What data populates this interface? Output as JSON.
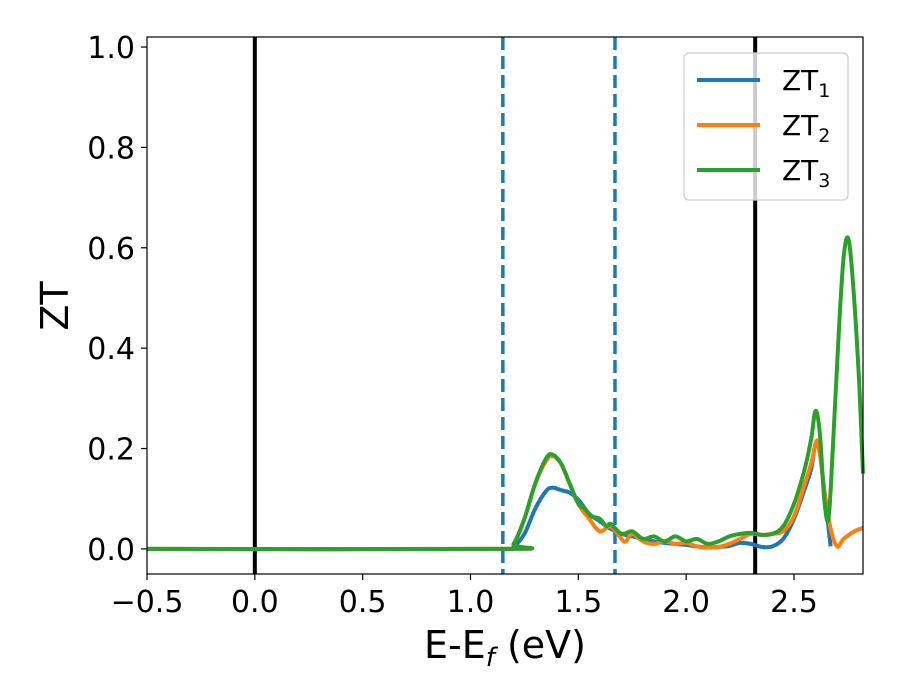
{
  "chart_data": {
    "type": "line",
    "xlabel": {
      "main": "E-E",
      "sub": "f",
      "rest": " (eV)"
    },
    "ylabel": "ZT",
    "xlim": [
      -0.5,
      2.82
    ],
    "ylim": [
      -0.05,
      1.02
    ],
    "x_ticks": [
      {
        "value": -0.5,
        "label": "−0.5"
      },
      {
        "value": 0.0,
        "label": "0.0"
      },
      {
        "value": 0.5,
        "label": "0.5"
      },
      {
        "value": 1.0,
        "label": "1.0"
      },
      {
        "value": 1.5,
        "label": "1.5"
      },
      {
        "value": 2.0,
        "label": "2.0"
      },
      {
        "value": 2.5,
        "label": "2.5"
      }
    ],
    "y_ticks": [
      {
        "value": 0.0,
        "label": "0.0"
      },
      {
        "value": 0.2,
        "label": "0.2"
      },
      {
        "value": 0.4,
        "label": "0.4"
      },
      {
        "value": 0.6,
        "label": "0.6"
      },
      {
        "value": 0.8,
        "label": "0.8"
      },
      {
        "value": 1.0,
        "label": "1.0"
      }
    ],
    "grid": false,
    "legend_position": "top-right",
    "vertical_lines": [
      {
        "x": 0.0,
        "style": "solid",
        "color": "#000000"
      },
      {
        "x": 2.32,
        "style": "solid",
        "color": "#000000"
      },
      {
        "x": 1.15,
        "style": "dashed",
        "color": "#1f77b4"
      },
      {
        "x": 1.67,
        "style": "dashed",
        "color": "#1f77b4"
      }
    ],
    "series": [
      {
        "name": "ZT",
        "name_sub": "1",
        "color": "#1f77b4",
        "points": [
          [
            -0.5,
            0
          ],
          [
            1.15,
            0
          ],
          [
            1.2,
            0.005
          ],
          [
            1.25,
            0.03
          ],
          [
            1.3,
            0.08
          ],
          [
            1.35,
            0.115
          ],
          [
            1.38,
            0.122
          ],
          [
            1.42,
            0.117
          ],
          [
            1.46,
            0.112
          ],
          [
            1.5,
            0.098
          ],
          [
            1.55,
            0.07
          ],
          [
            1.6,
            0.055
          ],
          [
            1.65,
            0.04
          ],
          [
            1.7,
            0.03
          ],
          [
            1.75,
            0.025
          ],
          [
            1.8,
            0.02
          ],
          [
            1.85,
            0.015
          ],
          [
            1.9,
            0.012
          ],
          [
            1.95,
            0.01
          ],
          [
            2.0,
            0.008
          ],
          [
            2.05,
            0.005
          ],
          [
            2.1,
            0.003
          ],
          [
            2.15,
            0.004
          ],
          [
            2.2,
            0.006
          ],
          [
            2.25,
            0.012
          ],
          [
            2.3,
            0.01
          ],
          [
            2.35,
            0.004
          ],
          [
            2.4,
            0.005
          ],
          [
            2.45,
            0.02
          ],
          [
            2.5,
            0.06
          ],
          [
            2.55,
            0.12
          ],
          [
            2.58,
            0.16
          ],
          [
            2.6,
            0.21
          ],
          [
            2.62,
            0.19
          ],
          [
            2.65,
            0.08
          ],
          [
            2.67,
            0.005
          ]
        ]
      },
      {
        "name": "ZT",
        "name_sub": "2",
        "color": "#ff7f0e",
        "points": [
          [
            -0.5,
            0
          ],
          [
            1.15,
            0
          ],
          [
            1.2,
            0.01
          ],
          [
            1.25,
            0.06
          ],
          [
            1.3,
            0.13
          ],
          [
            1.35,
            0.175
          ],
          [
            1.38,
            0.185
          ],
          [
            1.42,
            0.17
          ],
          [
            1.46,
            0.13
          ],
          [
            1.5,
            0.09
          ],
          [
            1.55,
            0.06
          ],
          [
            1.6,
            0.035
          ],
          [
            1.65,
            0.045
          ],
          [
            1.7,
            0.02
          ],
          [
            1.72,
            0.015
          ],
          [
            1.75,
            0.03
          ],
          [
            1.8,
            0.015
          ],
          [
            1.85,
            0.01
          ],
          [
            1.9,
            0.015
          ],
          [
            1.95,
            0.01
          ],
          [
            2.0,
            0.012
          ],
          [
            2.05,
            0.005
          ],
          [
            2.1,
            0.003
          ],
          [
            2.15,
            0.004
          ],
          [
            2.2,
            0.01
          ],
          [
            2.25,
            0.02
          ],
          [
            2.3,
            0.03
          ],
          [
            2.35,
            0.028
          ],
          [
            2.4,
            0.03
          ],
          [
            2.45,
            0.035
          ],
          [
            2.5,
            0.065
          ],
          [
            2.55,
            0.13
          ],
          [
            2.58,
            0.17
          ],
          [
            2.61,
            0.215
          ],
          [
            2.64,
            0.12
          ],
          [
            2.67,
            0.04
          ],
          [
            2.7,
            0.005
          ],
          [
            2.73,
            0.02
          ],
          [
            2.78,
            0.035
          ],
          [
            2.82,
            0.042
          ]
        ]
      },
      {
        "name": "ZT",
        "name_sub": "3",
        "color": "#2ca02c",
        "points": [
          [
            -0.5,
            0
          ],
          [
            1.15,
            0
          ],
          [
            1.2,
            0.01
          ],
          [
            1.25,
            0.06
          ],
          [
            1.3,
            0.13
          ],
          [
            1.35,
            0.18
          ],
          [
            1.38,
            0.188
          ],
          [
            1.42,
            0.17
          ],
          [
            1.46,
            0.13
          ],
          [
            1.5,
            0.09
          ],
          [
            1.53,
            0.08
          ],
          [
            1.56,
            0.065
          ],
          [
            1.6,
            0.06
          ],
          [
            1.63,
            0.045
          ],
          [
            1.65,
            0.05
          ],
          [
            1.7,
            0.03
          ],
          [
            1.75,
            0.035
          ],
          [
            1.8,
            0.02
          ],
          [
            1.85,
            0.025
          ],
          [
            1.9,
            0.015
          ],
          [
            1.95,
            0.025
          ],
          [
            2.0,
            0.015
          ],
          [
            2.05,
            0.02
          ],
          [
            2.1,
            0.01
          ],
          [
            2.15,
            0.015
          ],
          [
            2.2,
            0.025
          ],
          [
            2.25,
            0.03
          ],
          [
            2.3,
            0.032
          ],
          [
            2.35,
            0.028
          ],
          [
            2.4,
            0.03
          ],
          [
            2.45,
            0.045
          ],
          [
            2.5,
            0.09
          ],
          [
            2.55,
            0.16
          ],
          [
            2.58,
            0.22
          ],
          [
            2.6,
            0.275
          ],
          [
            2.62,
            0.23
          ],
          [
            2.64,
            0.1
          ],
          [
            2.66,
            0.06
          ],
          [
            2.68,
            0.2
          ],
          [
            2.71,
            0.45
          ],
          [
            2.73,
            0.58
          ],
          [
            2.75,
            0.62
          ],
          [
            2.77,
            0.55
          ],
          [
            2.8,
            0.35
          ],
          [
            2.82,
            0.15
          ]
        ]
      }
    ]
  }
}
